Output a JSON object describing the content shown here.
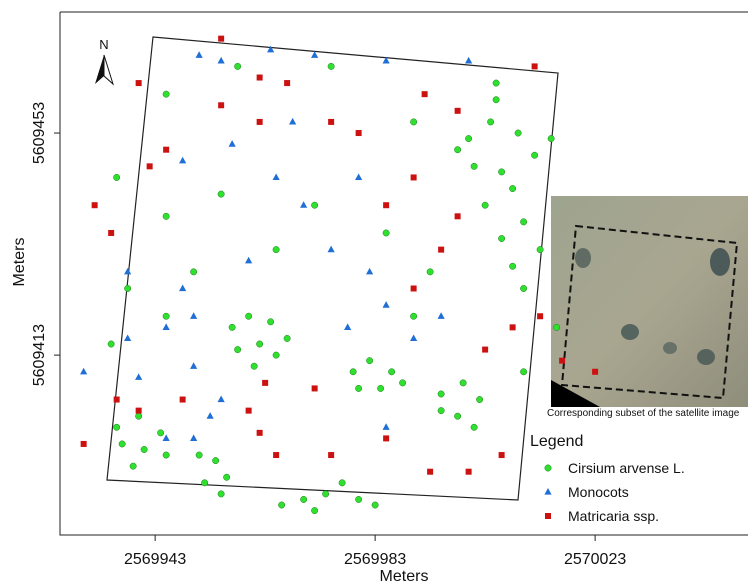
{
  "chart_data": {
    "type": "scatter",
    "xlabel": "Meters",
    "ylabel": "Meters",
    "xlim": [
      2569925.7,
      2570050.8
    ],
    "ylim": [
      5609380.6,
      5609474.8
    ],
    "xticks": [
      2569943,
      2569983,
      2570023
    ],
    "yticks": [
      5609413,
      5609453
    ],
    "north_label": "N",
    "inset_caption": "Corresponding subset of the satellite image",
    "legend": {
      "title": "Legend",
      "position": "lower right"
    },
    "series": [
      {
        "name": "Cirsium arvense L.",
        "color": "#2fe02f",
        "marker": "circle",
        "x": [
          2570000,
          2570004,
          2570009,
          2570012,
          2570006,
          2570001,
          2570008,
          2570003,
          2570010,
          2570006,
          2570013,
          2570008,
          2569998,
          2570015,
          2570005,
          2569957,
          2569960,
          2569964,
          2569962,
          2569958,
          2569965,
          2569961,
          2569967,
          2569979,
          2569982,
          2569986,
          2569984,
          2569980,
          2569988,
          2569995,
          2569999,
          2570002,
          2569998,
          2569995,
          2570001,
          2569936,
          2569940,
          2569944,
          2569941,
          2569937,
          2569945,
          2569939,
          2569951,
          2569954,
          2569956,
          2569952,
          2569955,
          2569966,
          2569970,
          2569974,
          2569977,
          2569980,
          2569983,
          2569972,
          2569936,
          2569945,
          2569955,
          2569950,
          2569938,
          2569945,
          2569935,
          2569972,
          2569985,
          2569993,
          2569990,
          2570010,
          2570016,
          2570010,
          2569965,
          2569958,
          2569975,
          2570005,
          2569945,
          2569990
        ],
        "y": [
          5609452,
          5609455,
          5609453,
          5609449,
          5609446,
          5609447,
          5609443,
          5609440,
          5609437,
          5609434,
          5609432,
          5609429,
          5609450,
          5609452,
          5609459,
          5609418,
          5609420,
          5609419,
          5609415,
          5609414,
          5609413,
          5609411,
          5609416,
          5609410,
          5609412,
          5609410,
          5609407,
          5609407,
          5609408,
          5609406,
          5609408,
          5609405,
          5609402,
          5609403,
          5609400,
          5609400,
          5609402,
          5609399,
          5609396,
          5609397,
          5609395,
          5609393,
          5609395,
          5609394,
          5609391,
          5609390,
          5609388,
          5609386,
          5609387,
          5609388,
          5609390,
          5609387,
          5609386,
          5609385,
          5609445,
          5609438,
          5609442,
          5609428,
          5609425,
          5609420,
          5609415,
          5609440,
          5609435,
          5609428,
          5609420,
          5609425,
          5609418,
          5609410,
          5609432,
          5609465,
          5609465,
          5609462,
          5609460,
          5609455
        ]
      },
      {
        "name": "Monocots",
        "color": "#1f6fd6",
        "marker": "triangle",
        "x": [
          2569951,
          2569955,
          2569964,
          2569972,
          2569985,
          2570000,
          2569957,
          2569965,
          2569970,
          2569975,
          2569982,
          2569985,
          2569978,
          2569990,
          2569995,
          2569938,
          2569948,
          2569950,
          2569945,
          2569938,
          2569940,
          2569950,
          2569955,
          2569945,
          2569950,
          2569953,
          2569930,
          2569960,
          2569980,
          2569968,
          2569948,
          2569985
        ],
        "y": [
          5609467,
          5609466,
          5609468,
          5609467,
          5609466,
          5609466,
          5609451,
          5609445,
          5609440,
          5609432,
          5609428,
          5609422,
          5609418,
          5609416,
          5609420,
          5609428,
          5609425,
          5609420,
          5609418,
          5609416,
          5609409,
          5609411,
          5609405,
          5609398,
          5609398,
          5609402,
          5609410,
          5609430,
          5609445,
          5609455,
          5609448,
          5609400
        ]
      },
      {
        "name": "Matricaria ssp.",
        "color": "#cc1111",
        "marker": "square",
        "x": [
          2569955,
          2569962,
          2569967,
          2569955,
          2569962,
          2569945,
          2569942,
          2569975,
          2569980,
          2569992,
          2569998,
          2570012,
          2569990,
          2569985,
          2569998,
          2569935,
          2569995,
          2569990,
          2570013,
          2570017,
          2570023,
          2570003,
          2570008,
          2569936,
          2569940,
          2569948,
          2569960,
          2569962,
          2569930,
          2569975,
          2569985,
          2569993,
          2570000,
          2570006,
          2569965,
          2569932,
          2569940,
          2569972,
          2569963
        ],
        "y": [
          5609470,
          5609463,
          5609462,
          5609458,
          5609455,
          5609450,
          5609447,
          5609455,
          5609453,
          5609460,
          5609457,
          5609465,
          5609445,
          5609440,
          5609438,
          5609435,
          5609432,
          5609425,
          5609420,
          5609412,
          5609410,
          5609414,
          5609418,
          5609405,
          5609403,
          5609405,
          5609403,
          5609399,
          5609397,
          5609395,
          5609398,
          5609392,
          5609392,
          5609395,
          5609395,
          5609440,
          5609462,
          5609407,
          5609408
        ]
      }
    ]
  }
}
